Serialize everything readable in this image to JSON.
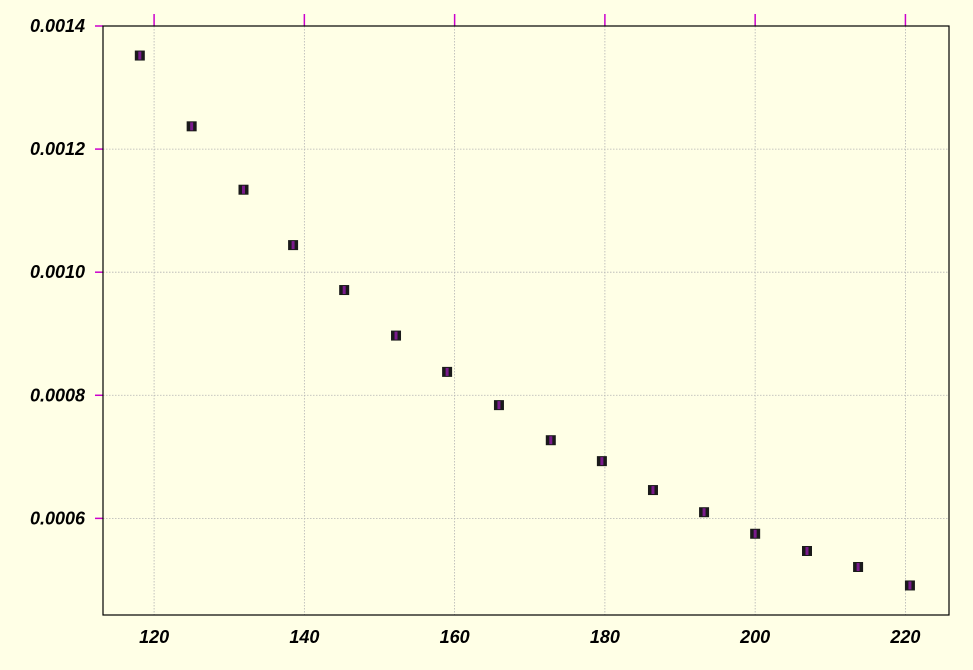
{
  "chart_data": {
    "type": "scatter",
    "title": "",
    "xlabel": "",
    "ylabel": "",
    "xlim": [
      113.2,
      225.8
    ],
    "ylim": [
      0.000443,
      0.0014
    ],
    "x_ticks": [
      120,
      140,
      160,
      180,
      200,
      220
    ],
    "x_tick_labels": [
      "120",
      "140",
      "160",
      "180",
      "200",
      "220"
    ],
    "y_ticks": [
      0.0006,
      0.0008,
      0.001,
      0.0012,
      0.0014
    ],
    "y_tick_labels": [
      "0.0006",
      "0.0008",
      "0.0010",
      "0.0012",
      "0.0014"
    ],
    "grid": true,
    "series": [
      {
        "x": [
          118.1,
          125.0,
          131.9,
          138.5,
          145.3,
          152.2,
          159.0,
          165.9,
          172.8,
          179.6,
          186.4,
          193.2,
          200.0,
          206.9,
          213.7,
          220.6
        ],
        "y": [
          0.001352,
          0.001237,
          0.001134,
          0.001044,
          0.000971,
          0.000897,
          0.000838,
          0.000784,
          0.000727,
          0.000693,
          0.000646,
          0.00061,
          0.000575,
          0.000547,
          0.000521,
          0.000491
        ]
      }
    ],
    "colors": {
      "background": "#ffffe6",
      "grid": "#b3b3b3",
      "tick_marks": "#cc00cc",
      "marker_edge": "#1a1a1a",
      "marker_face": "#7a1a8c",
      "axes": "#000000"
    }
  }
}
